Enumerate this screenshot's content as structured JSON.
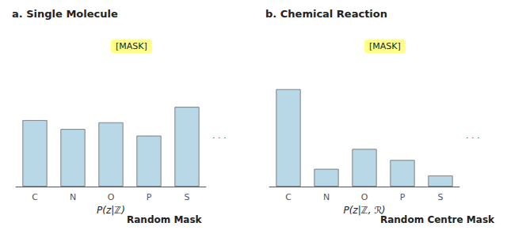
{
  "chart_data": [
    {
      "type": "bar",
      "title": "a. Single Molecule",
      "subtitle": "Random Mask",
      "xlabel": "P(z|ℤ)",
      "annotations": [
        "[MASK]",
        ". . ."
      ],
      "categories": [
        "C",
        "N",
        "O",
        "P",
        "S"
      ],
      "values": [
        0.6,
        0.52,
        0.58,
        0.46,
        0.72
      ],
      "color": "#b8d8e8",
      "ylim": [
        0,
        1.0
      ],
      "tick_labels": "x",
      "grid": false
    },
    {
      "type": "bar",
      "title": "b. Chemical Reaction",
      "subtitle": "Random Centre Mask",
      "xlabel": "P(z|ℤ, ℛ)",
      "annotations": [
        "[MASK]",
        ". . ."
      ],
      "categories": [
        "C",
        "N",
        "O",
        "P",
        "S"
      ],
      "values": [
        0.88,
        0.16,
        0.34,
        0.24,
        0.1
      ],
      "color": "#b8d8e8",
      "ylim": [
        0,
        1.0
      ],
      "tick_labels": "x",
      "grid": false
    }
  ]
}
